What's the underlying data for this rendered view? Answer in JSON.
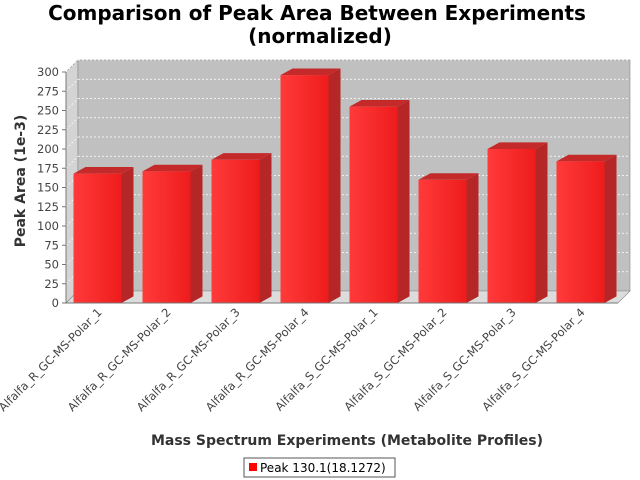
{
  "chart_data": {
    "type": "bar",
    "title": "Comparison of Peak Area Between Experiments",
    "subtitle": "(normalized)",
    "xlabel": "Mass Spectrum Experiments (Metabolite Profiles)",
    "ylabel": "Peak Area (1e-3)",
    "ylim": [
      0,
      300
    ],
    "yticks": [
      0,
      25,
      50,
      75,
      100,
      125,
      150,
      175,
      200,
      225,
      250,
      275,
      300
    ],
    "grid": true,
    "legend_position": "bottom",
    "categories": [
      "Alfalfa_R_GC-MS-Polar_1",
      "Alfalfa_R_GC-MS-Polar_2",
      "Alfalfa_R_GC-MS-Polar_3",
      "Alfalfa_R_GC-MS-Polar_4",
      "Alfalfa_S_GC-MS-Polar_1",
      "Alfalfa_S_GC-MS-Polar_2",
      "Alfalfa_S_GC-MS-Polar_3",
      "Alfalfa_S_GC-MS-Polar_4"
    ],
    "series": [
      {
        "name": "Peak 130.1(18.1272)",
        "color": "#ff0000",
        "values": [
          168,
          171,
          186,
          296,
          255,
          160,
          200,
          184
        ]
      }
    ]
  }
}
